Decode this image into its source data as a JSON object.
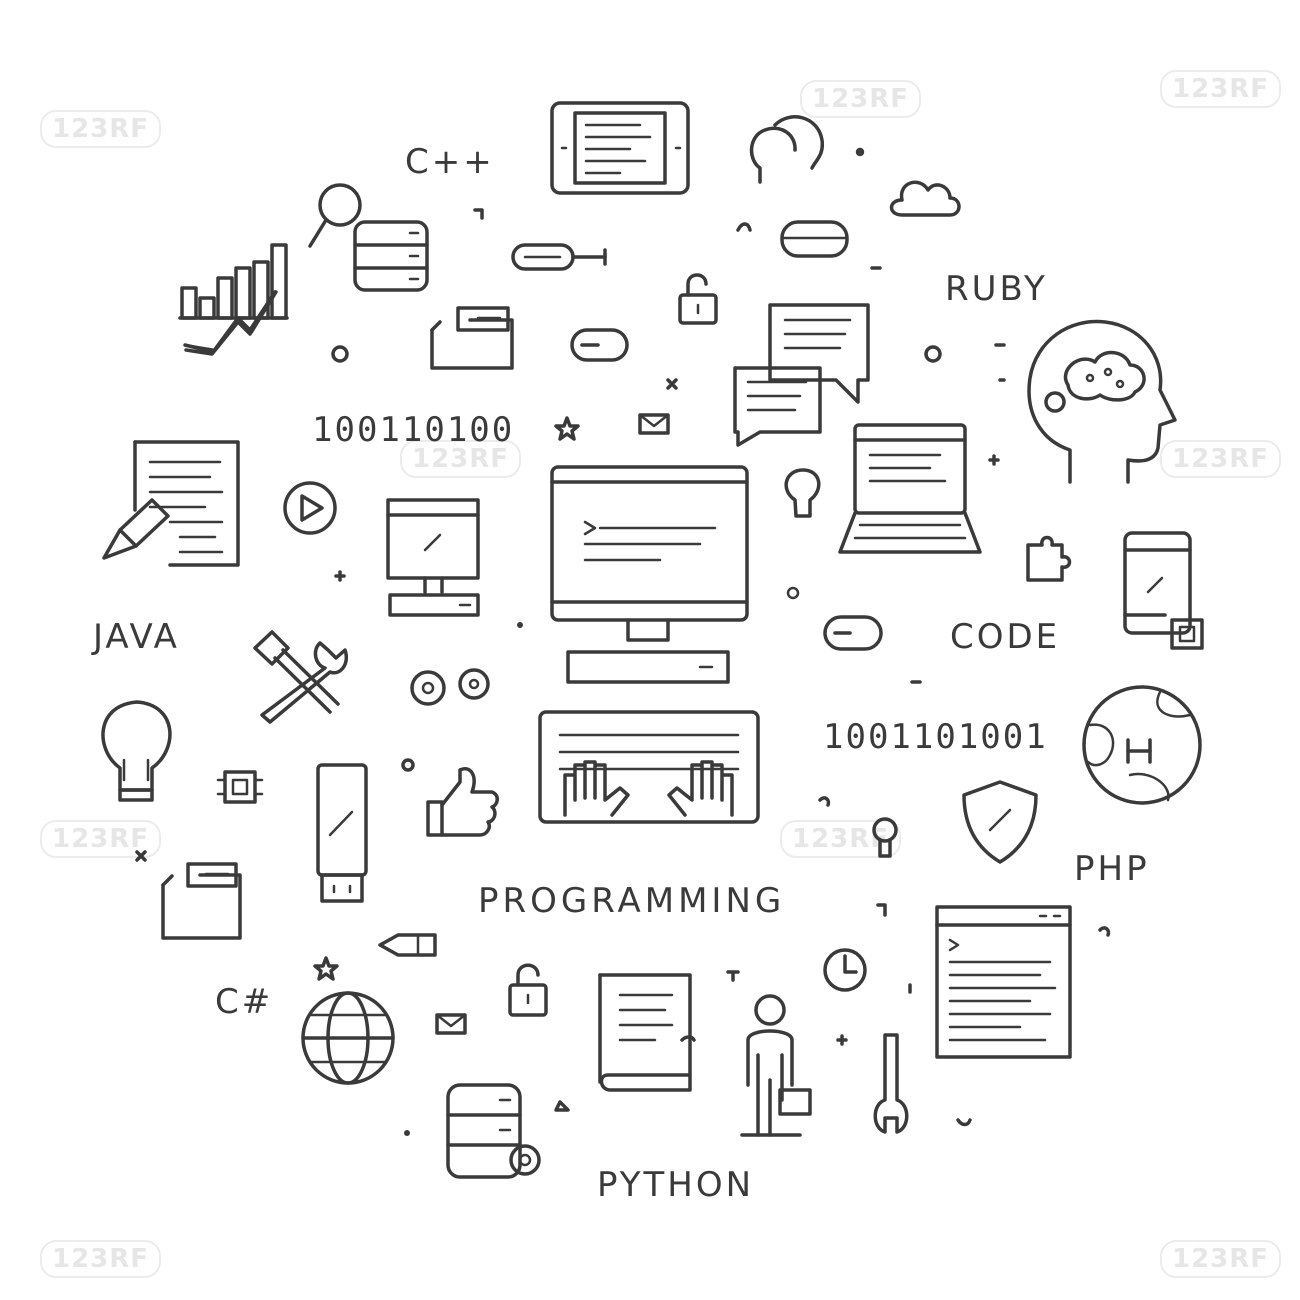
{
  "labels": {
    "cpp": "C++",
    "ruby": "RUBY",
    "java": "JAVA",
    "code": "CODE",
    "php": "PHP",
    "csharp": "C#",
    "python": "PYTHON",
    "programming": "PROGRAMMING",
    "binary_top": "100110100",
    "binary_right": "1001101001"
  },
  "watermark": "123RF",
  "colors": {
    "line": "#3a3a3a",
    "background": "#ffffff",
    "watermark": "#e6e6e6"
  },
  "icons": [
    "tablet-code-icon",
    "heads-icon",
    "cloud-icon",
    "magnifier-icon",
    "database-icon",
    "screwdriver-icon",
    "server-disk-icon",
    "padlock-icon",
    "chart-icon",
    "folder-icon",
    "toggle-icon",
    "chat-icon",
    "gear-icon",
    "brain-head-icon",
    "document-pencil-icon",
    "play-icon",
    "monitor-icon",
    "computer-icon",
    "laptop-icon",
    "lightbulb-icon",
    "puzzle-icon",
    "smartphone-icon",
    "tools-icon",
    "gears-icon",
    "keyboard-hands-icon",
    "globe-icon",
    "chip-icon",
    "usb-icon",
    "thumbs-up-icon",
    "shield-icon",
    "keyhole-icon",
    "browser-code-icon",
    "clock-icon",
    "book-icon",
    "person-icon",
    "wrench-icon",
    "envelope-icon",
    "star-icon",
    "pen-icon"
  ]
}
